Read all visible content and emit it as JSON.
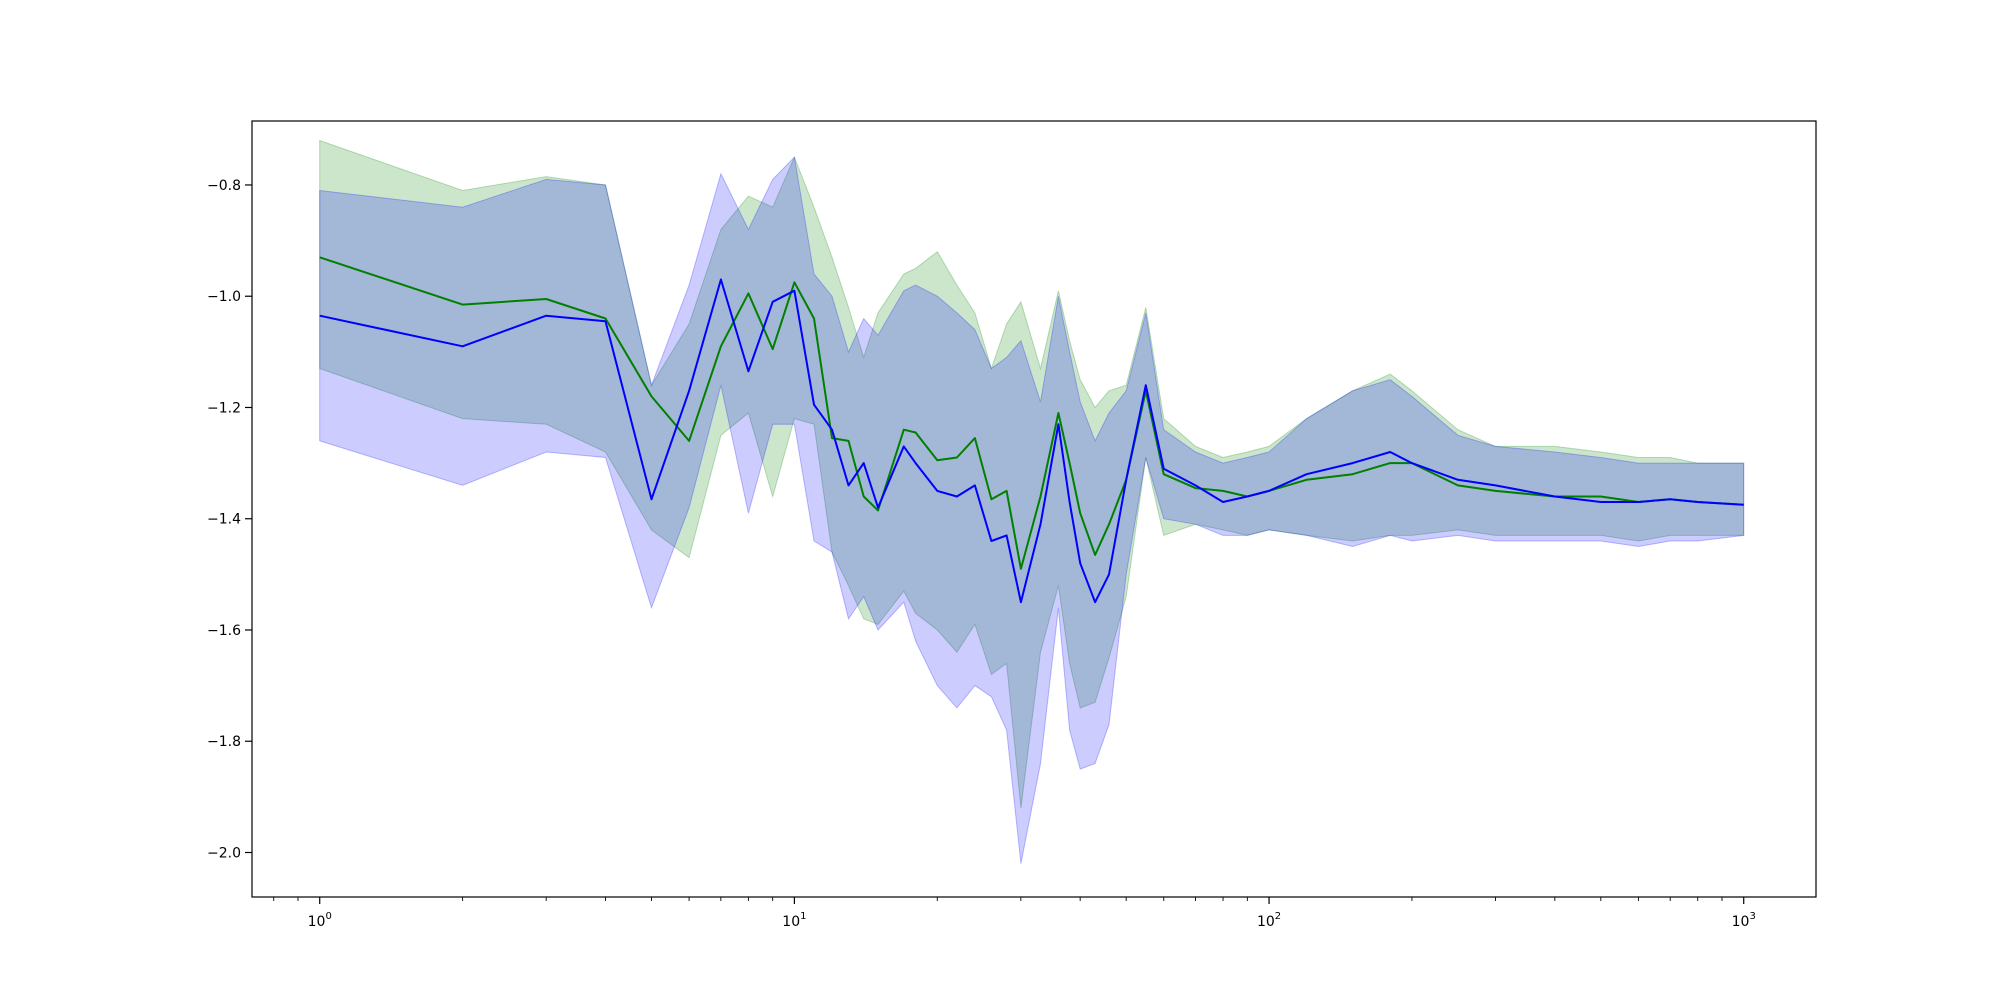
{
  "chart_data": {
    "type": "line",
    "xscale": "log",
    "xlim": [
      0.72,
      1420
    ],
    "ylim": [
      -2.08,
      -0.685
    ],
    "grid": false,
    "x_ticks": [
      {
        "value": 1,
        "base": "10",
        "exp": "0"
      },
      {
        "value": 10,
        "base": "10",
        "exp": "1"
      },
      {
        "value": 100,
        "base": "10",
        "exp": "2"
      },
      {
        "value": 1000,
        "base": "10",
        "exp": "3"
      }
    ],
    "y_ticks": [
      {
        "value": -0.8,
        "label": "−0.8"
      },
      {
        "value": -1.0,
        "label": "−1.0"
      },
      {
        "value": -1.2,
        "label": "−1.2"
      },
      {
        "value": -1.4,
        "label": "−1.4"
      },
      {
        "value": -1.6,
        "label": "−1.6"
      },
      {
        "value": -1.8,
        "label": "−1.8"
      },
      {
        "value": -2.0,
        "label": "−2.0"
      }
    ],
    "series": [
      {
        "color": "#008000",
        "band_color": "#008000",
        "band_opacity": 0.2,
        "x": [
          1,
          2,
          3,
          4,
          5,
          6,
          7,
          8,
          9,
          10,
          11,
          12,
          13,
          14,
          15,
          17,
          18,
          20,
          22,
          24,
          26,
          28,
          30,
          33,
          36,
          38,
          40,
          43,
          46,
          50,
          55,
          60,
          70,
          80,
          90,
          100,
          120,
          150,
          180,
          200,
          250,
          300,
          400,
          500,
          600,
          700,
          800,
          1000
        ],
        "mean": [
          -0.93,
          -1.015,
          -1.005,
          -1.04,
          -1.18,
          -1.26,
          -1.09,
          -0.995,
          -1.095,
          -0.975,
          -1.04,
          -1.255,
          -1.26,
          -1.36,
          -1.385,
          -1.24,
          -1.245,
          -1.295,
          -1.29,
          -1.255,
          -1.365,
          -1.35,
          -1.49,
          -1.36,
          -1.21,
          -1.3,
          -1.39,
          -1.465,
          -1.41,
          -1.33,
          -1.17,
          -1.32,
          -1.345,
          -1.35,
          -1.36,
          -1.35,
          -1.33,
          -1.32,
          -1.3,
          -1.3,
          -1.34,
          -1.35,
          -1.36,
          -1.36,
          -1.37,
          -1.365,
          -1.37,
          -1.375
        ],
        "upper": [
          -0.72,
          -0.81,
          -0.785,
          -0.8,
          -1.16,
          -1.05,
          -0.88,
          -0.82,
          -0.84,
          -0.75,
          -0.84,
          -0.93,
          -1.02,
          -1.11,
          -1.03,
          -0.96,
          -0.95,
          -0.92,
          -0.98,
          -1.03,
          -1.13,
          -1.05,
          -1.01,
          -1.13,
          -0.99,
          -1.08,
          -1.15,
          -1.2,
          -1.17,
          -1.16,
          -1.02,
          -1.22,
          -1.27,
          -1.29,
          -1.28,
          -1.27,
          -1.22,
          -1.17,
          -1.14,
          -1.17,
          -1.24,
          -1.27,
          -1.27,
          -1.28,
          -1.29,
          -1.29,
          -1.3,
          -1.3
        ],
        "lower": [
          -1.13,
          -1.22,
          -1.23,
          -1.28,
          -1.42,
          -1.47,
          -1.25,
          -1.21,
          -1.36,
          -1.22,
          -1.23,
          -1.46,
          -1.52,
          -1.58,
          -1.59,
          -1.53,
          -1.57,
          -1.6,
          -1.64,
          -1.59,
          -1.68,
          -1.66,
          -1.92,
          -1.64,
          -1.52,
          -1.66,
          -1.74,
          -1.73,
          -1.65,
          -1.54,
          -1.29,
          -1.43,
          -1.41,
          -1.42,
          -1.43,
          -1.42,
          -1.43,
          -1.44,
          -1.43,
          -1.43,
          -1.42,
          -1.43,
          -1.43,
          -1.43,
          -1.44,
          -1.43,
          -1.43,
          -1.43
        ]
      },
      {
        "color": "#0000ff",
        "band_color": "#0000ff",
        "band_opacity": 0.2,
        "x": [
          1,
          2,
          3,
          4,
          5,
          6,
          7,
          8,
          9,
          10,
          11,
          12,
          13,
          14,
          15,
          17,
          18,
          20,
          22,
          24,
          26,
          28,
          30,
          33,
          36,
          38,
          40,
          43,
          46,
          50,
          55,
          60,
          70,
          80,
          90,
          100,
          120,
          150,
          180,
          200,
          250,
          300,
          400,
          500,
          600,
          700,
          800,
          1000
        ],
        "mean": [
          -1.035,
          -1.09,
          -1.035,
          -1.045,
          -1.365,
          -1.17,
          -0.97,
          -1.135,
          -1.01,
          -0.99,
          -1.195,
          -1.24,
          -1.34,
          -1.3,
          -1.38,
          -1.27,
          -1.3,
          -1.35,
          -1.36,
          -1.34,
          -1.44,
          -1.43,
          -1.55,
          -1.41,
          -1.23,
          -1.37,
          -1.48,
          -1.55,
          -1.5,
          -1.33,
          -1.16,
          -1.31,
          -1.34,
          -1.37,
          -1.36,
          -1.35,
          -1.32,
          -1.3,
          -1.28,
          -1.3,
          -1.33,
          -1.34,
          -1.36,
          -1.37,
          -1.37,
          -1.365,
          -1.37,
          -1.375
        ],
        "upper": [
          -0.81,
          -0.84,
          -0.79,
          -0.8,
          -1.16,
          -0.98,
          -0.78,
          -0.88,
          -0.79,
          -0.75,
          -0.96,
          -1.0,
          -1.1,
          -1.04,
          -1.07,
          -0.99,
          -0.98,
          -1.0,
          -1.03,
          -1.06,
          -1.13,
          -1.11,
          -1.08,
          -1.19,
          -1.0,
          -1.1,
          -1.19,
          -1.26,
          -1.21,
          -1.17,
          -1.03,
          -1.24,
          -1.28,
          -1.3,
          -1.29,
          -1.28,
          -1.22,
          -1.17,
          -1.15,
          -1.18,
          -1.25,
          -1.27,
          -1.28,
          -1.29,
          -1.3,
          -1.3,
          -1.3,
          -1.3
        ],
        "lower": [
          -1.26,
          -1.34,
          -1.28,
          -1.29,
          -1.56,
          -1.38,
          -1.16,
          -1.39,
          -1.23,
          -1.23,
          -1.44,
          -1.46,
          -1.58,
          -1.54,
          -1.6,
          -1.55,
          -1.62,
          -1.7,
          -1.74,
          -1.7,
          -1.72,
          -1.78,
          -2.02,
          -1.84,
          -1.56,
          -1.78,
          -1.85,
          -1.84,
          -1.77,
          -1.5,
          -1.29,
          -1.4,
          -1.41,
          -1.43,
          -1.43,
          -1.42,
          -1.43,
          -1.45,
          -1.43,
          -1.44,
          -1.43,
          -1.44,
          -1.44,
          -1.44,
          -1.45,
          -1.44,
          -1.44,
          -1.43
        ]
      }
    ]
  }
}
